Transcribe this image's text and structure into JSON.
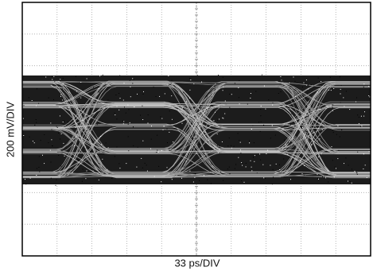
{
  "screen": {
    "y_label": "200 mV/DIV",
    "x_label": "33 ps/DIV"
  }
}
